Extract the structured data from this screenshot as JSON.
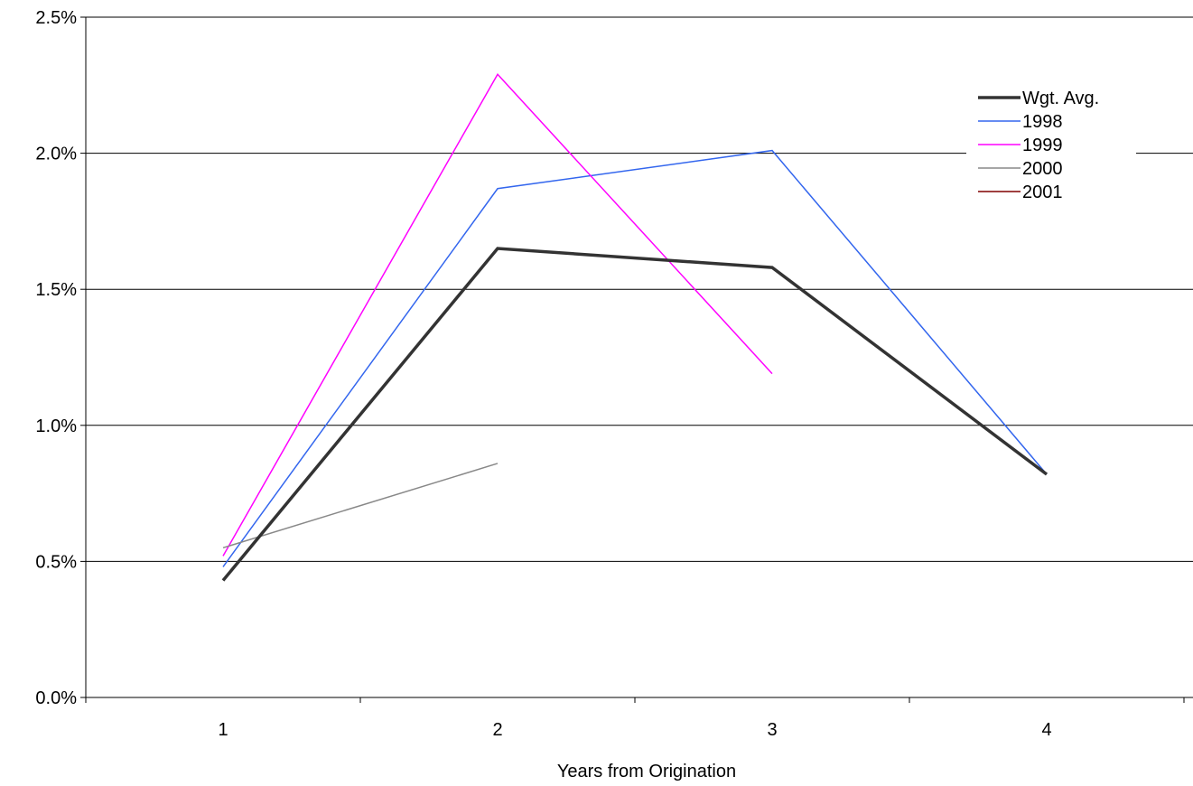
{
  "chart_data": {
    "type": "line",
    "title": "",
    "xlabel": "Years from Origination",
    "ylabel": "",
    "categories": [
      "1",
      "2",
      "3",
      "4"
    ],
    "ylim": [
      0,
      0.025
    ],
    "y_ticks": [
      "0.0%",
      "0.5%",
      "1.0%",
      "1.5%",
      "2.0%",
      "2.5%"
    ],
    "grid": "horizontal major gridlines",
    "legend_position": "top-right",
    "series": [
      {
        "name": "Wgt. Avg.",
        "color": "#333333",
        "values": [
          0.0043,
          0.0165,
          0.0158,
          0.0082
        ]
      },
      {
        "name": "1998",
        "color": "#3366ee",
        "values": [
          0.0048,
          0.0187,
          0.0201,
          0.0082
        ]
      },
      {
        "name": "1999",
        "color": "#ff00ff",
        "values": [
          0.0052,
          0.0229,
          0.0119,
          null
        ]
      },
      {
        "name": "2000",
        "color": "#888888",
        "values": [
          0.0055,
          0.0086,
          null,
          null
        ]
      },
      {
        "name": "2001",
        "color": "#800000",
        "values": [
          null,
          null,
          null,
          null
        ]
      }
    ]
  }
}
